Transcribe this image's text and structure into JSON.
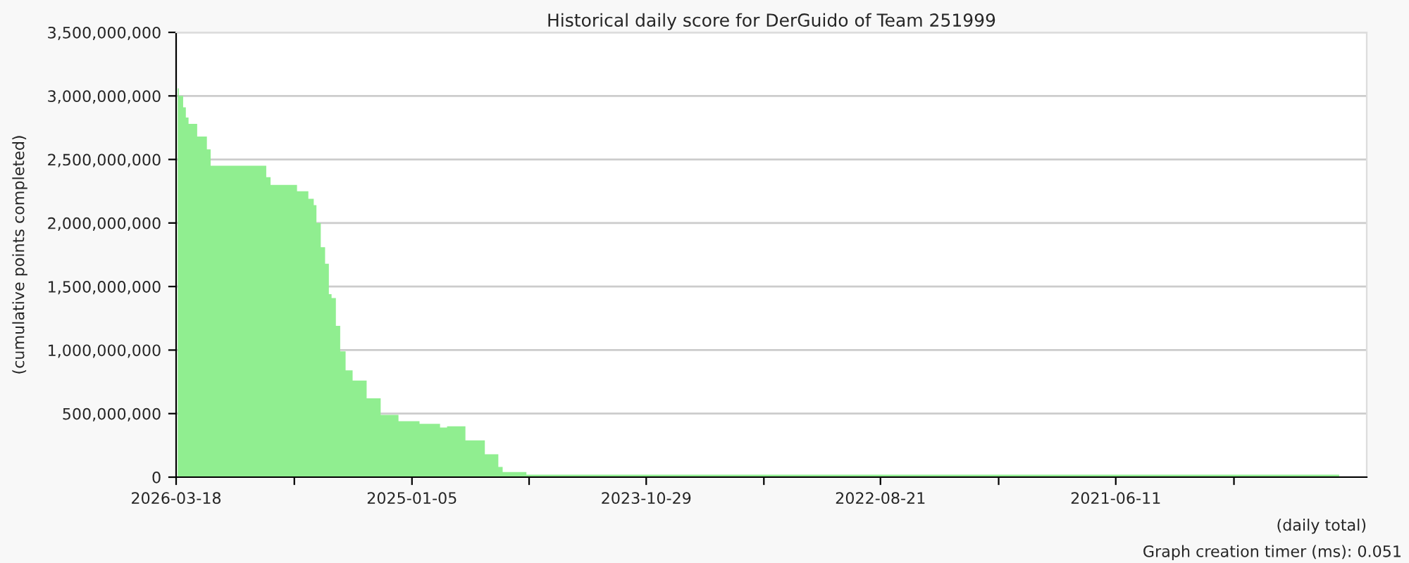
{
  "chart_data": {
    "type": "area",
    "title": "Historical daily score for DerGuido of Team 251999",
    "xlabel": "(daily total)",
    "ylabel": "(cumulative points completed)",
    "annotations": [
      "Graph creation timer (ms): 0.051"
    ],
    "x": [
      "2026-03-15",
      "2026-03-13",
      "2026-03-05",
      "2026-02-28",
      "2026-02-23",
      "2026-02-07",
      "2026-01-23",
      "2026-01-20",
      "2026-01-13",
      "2025-10-07",
      "2025-10-02",
      "2025-09-24",
      "2025-08-11",
      "2025-08-06",
      "2025-07-16",
      "2025-07-06",
      "2025-07-01",
      "2025-06-23",
      "2025-06-15",
      "2025-06-08",
      "2025-06-03",
      "2025-05-26",
      "2025-05-18",
      "2025-05-08",
      "2025-04-25",
      "2025-03-30",
      "2025-03-04",
      "2025-01-30",
      "2024-12-22",
      "2024-11-14",
      "2024-11-01",
      "2024-09-28",
      "2024-08-23",
      "2024-07-29",
      "2024-07-21",
      "2024-06-07",
      "2020-04-23"
    ],
    "series": [
      {
        "color": "#90ee90",
        "values": [
          3060000000,
          3000000000,
          2910000000,
          2830000000,
          2780000000,
          2680000000,
          2680000000,
          2580000000,
          2450000000,
          2450000000,
          2360000000,
          2300000000,
          2300000000,
          2250000000,
          2190000000,
          2140000000,
          2000000000,
          1810000000,
          1680000000,
          1440000000,
          1410000000,
          1190000000,
          990000000,
          840000000,
          760000000,
          620000000,
          490000000,
          440000000,
          420000000,
          390000000,
          400000000,
          290000000,
          180000000,
          80000000,
          40000000,
          20000000,
          20000000
        ]
      }
    ],
    "xlim": [
      "2026-03-18",
      "2020-03-03"
    ],
    "xticks": [
      {
        "value": "2026-03-18",
        "label": "2026-03-18"
      },
      {
        "value": "2025-08-11",
        "label": null
      },
      {
        "value": "2025-01-05",
        "label": "2025-01-05"
      },
      {
        "value": "2024-06-02",
        "label": null
      },
      {
        "value": "2023-10-29",
        "label": "2023-10-29"
      },
      {
        "value": "2023-03-25",
        "label": null
      },
      {
        "value": "2022-08-21",
        "label": "2022-08-21"
      },
      {
        "value": "2022-01-14",
        "label": null
      },
      {
        "value": "2021-06-11",
        "label": "2021-06-11"
      },
      {
        "value": "2020-11-04",
        "label": null
      }
    ],
    "ylim": [
      0,
      3500000000
    ],
    "yticks": [
      0,
      {
        "value": 500000000,
        "label": "500,000,000"
      },
      {
        "value": 1000000000,
        "label": "1,000,000,000"
      },
      {
        "value": 1500000000,
        "label": "1,500,000,000"
      },
      {
        "value": 2000000000,
        "label": "2,000,000,000"
      },
      {
        "value": 2500000000,
        "label": "2,500,000,000"
      },
      {
        "value": 3000000000,
        "label": "3,000,000,000"
      },
      {
        "value": 3500000000,
        "label": "3,500,000,000"
      }
    ],
    "grid": "y",
    "legend": false
  }
}
